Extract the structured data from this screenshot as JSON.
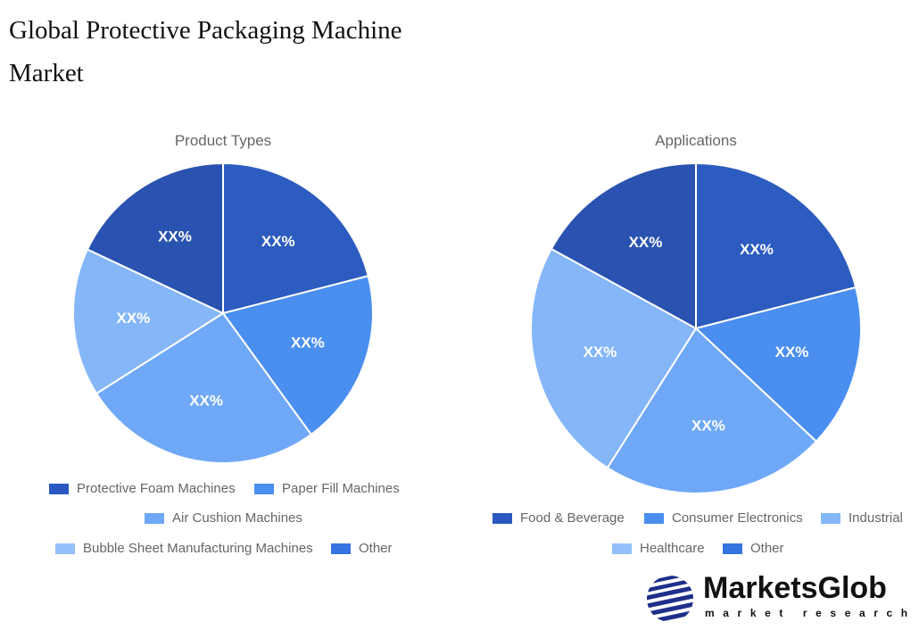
{
  "title": "Global Protective Packaging Machine Market",
  "chart_data": [
    {
      "type": "pie",
      "title": "Product Types",
      "categories": [
        "Protective Foam Machines",
        "Paper Fill Machines",
        "Air Cushion Machines",
        "Bubble Sheet Manufacturing Machines",
        "Other"
      ],
      "values": [
        21,
        19,
        26,
        16,
        18
      ],
      "labels": [
        "XX%",
        "XX%",
        "XX%",
        "XX%",
        "XX%"
      ],
      "colors": [
        "#2d5cc0",
        "#4a8ef0",
        "#6fa8f7",
        "#85b6f8",
        "#2a52b0"
      ],
      "legend_colors": [
        "#2b58c0",
        "#4a8ef0",
        "#6fa8f7",
        "#93c0fa",
        "#3473e0"
      ],
      "legend": "bottom"
    },
    {
      "type": "pie",
      "title": "Applications",
      "categories": [
        "Food & Beverage",
        "Consumer Electronics",
        "Industrial",
        "Healthcare",
        "Other"
      ],
      "values": [
        21,
        16,
        22,
        24,
        17
      ],
      "labels": [
        "XX%",
        "XX%",
        "XX%",
        "XX%",
        "XX%"
      ],
      "colors": [
        "#2d5cc0",
        "#4a8ef0",
        "#6fa8f7",
        "#85b6f8",
        "#2a52b0"
      ],
      "legend_colors": [
        "#2b58c0",
        "#4a8ef0",
        "#85b6f8",
        "#93c0fa",
        "#3473e0"
      ],
      "legend": "bottom"
    }
  ],
  "logo": {
    "name": "MarketsGlob",
    "tagline": "market research"
  }
}
